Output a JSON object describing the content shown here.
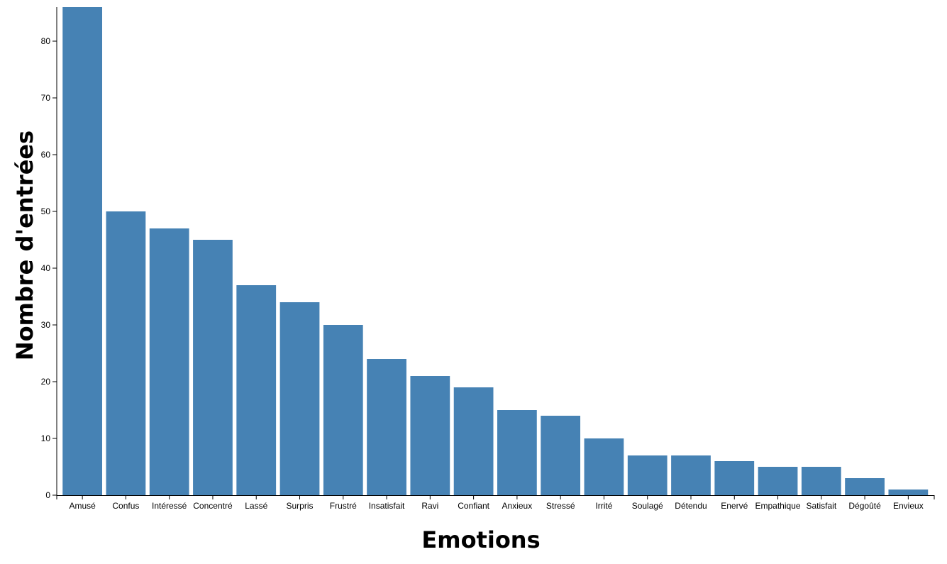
{
  "chart_data": {
    "type": "bar",
    "x_label": "Emotions",
    "y_label": "Nombre d'entrées",
    "categories": [
      "Amusé",
      "Confus",
      "Intéressé",
      "Concentré",
      "Lassé",
      "Surpris",
      "Frustré",
      "Insatisfait",
      "Ravi",
      "Confiant",
      "Anxieux",
      "Stressé",
      "Irrité",
      "Soulagé",
      "Détendu",
      "Enervé",
      "Empathique",
      "Satisfait",
      "Dégoûté",
      "Envieux"
    ],
    "values": [
      86,
      50,
      47,
      45,
      37,
      34,
      30,
      24,
      21,
      19,
      15,
      14,
      10,
      7,
      7,
      6,
      5,
      5,
      3,
      1
    ],
    "color": "#4682b4",
    "ylim": [
      0,
      86
    ],
    "yticks": [
      0,
      10,
      20,
      30,
      40,
      50,
      60,
      70,
      80
    ],
    "grid": false
  }
}
